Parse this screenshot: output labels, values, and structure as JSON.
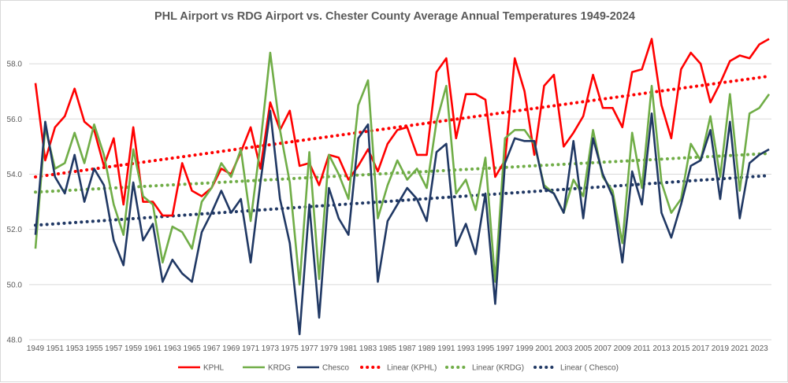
{
  "chart_data": {
    "type": "line",
    "title": "PHL Airport vs RDG Airport vs. Chester County Average Annual Temperatures 1949-2024",
    "xlabel": "",
    "ylabel": "",
    "xlim": [
      1949,
      2024
    ],
    "ylim": [
      48.0,
      59.0
    ],
    "yticks": [
      "48.0",
      "50.0",
      "52.0",
      "54.0",
      "56.0",
      "58.0"
    ],
    "ytick_values": [
      48,
      50,
      52,
      54,
      56,
      58
    ],
    "xticks": [
      1949,
      1951,
      1953,
      1955,
      1957,
      1959,
      1961,
      1963,
      1965,
      1967,
      1969,
      1971,
      1973,
      1975,
      1977,
      1979,
      1981,
      1983,
      1985,
      1987,
      1989,
      1991,
      1993,
      1995,
      1997,
      1999,
      2001,
      2003,
      2005,
      2007,
      2009,
      2011,
      2013,
      2015,
      2017,
      2019,
      2021,
      2023
    ],
    "grid": true,
    "legend_position": "bottom",
    "series": [
      {
        "name": "KPHL",
        "color": "#ff0000",
        "values": [
          57.3,
          54.5,
          55.7,
          56.1,
          57.1,
          55.9,
          55.6,
          54.3,
          55.3,
          52.9,
          55.7,
          53.0,
          53.0,
          52.5,
          52.5,
          54.4,
          53.4,
          53.2,
          53.5,
          54.2,
          54.0,
          54.8,
          55.7,
          54.2,
          56.6,
          55.6,
          56.3,
          54.3,
          54.4,
          53.6,
          54.7,
          54.6,
          53.8,
          54.3,
          54.9,
          54.1,
          55.1,
          55.6,
          55.7,
          54.7,
          54.7,
          57.7,
          58.2,
          55.3,
          56.9,
          56.9,
          56.7,
          53.9,
          54.5,
          58.2,
          57.0,
          54.7,
          57.2,
          57.6,
          55.0,
          55.5,
          56.1,
          57.6,
          56.4,
          56.4,
          55.7,
          57.7,
          57.8,
          58.9,
          56.5,
          55.3,
          57.8,
          58.4,
          58.0,
          56.6,
          57.3,
          58.1,
          58.3,
          58.2,
          58.7,
          58.9
        ]
      },
      {
        "name": "KRDG",
        "color": "#70ad47",
        "values": [
          51.3,
          55.7,
          54.2,
          54.4,
          55.5,
          54.4,
          55.8,
          54.7,
          52.9,
          51.8,
          54.9,
          53.2,
          52.9,
          50.8,
          52.1,
          51.9,
          51.3,
          53.0,
          53.5,
          54.4,
          53.9,
          54.9,
          52.3,
          55.1,
          58.4,
          55.6,
          53.7,
          50.0,
          54.8,
          50.2,
          54.7,
          54.0,
          53.1,
          56.5,
          57.4,
          52.4,
          53.6,
          54.5,
          53.8,
          54.2,
          53.5,
          55.9,
          57.2,
          53.3,
          53.8,
          52.7,
          54.6,
          50.1,
          55.3,
          55.6,
          55.6,
          55.1,
          53.6,
          53.3,
          52.6,
          53.8,
          53.2,
          55.6,
          53.9,
          53.4,
          51.5,
          55.5,
          53.5,
          57.2,
          53.7,
          52.6,
          53.1,
          55.1,
          54.5,
          56.1,
          53.9,
          56.9,
          53.4,
          56.2,
          56.4,
          56.9
        ]
      },
      {
        "name": "Chesco",
        "color": "#203864",
        "values": [
          51.8,
          55.9,
          53.9,
          53.3,
          54.7,
          53.0,
          54.2,
          53.6,
          51.6,
          50.7,
          53.7,
          51.6,
          52.2,
          50.1,
          50.9,
          50.4,
          50.1,
          51.9,
          52.6,
          53.4,
          52.6,
          53.1,
          50.8,
          53.7,
          56.3,
          53.1,
          51.5,
          48.2,
          52.9,
          48.8,
          53.5,
          52.4,
          51.8,
          55.3,
          55.8,
          50.1,
          52.3,
          52.9,
          53.5,
          53.1,
          52.3,
          54.8,
          55.1,
          51.4,
          52.2,
          51.1,
          53.3,
          49.3,
          54.4,
          55.3,
          55.2,
          55.2,
          53.5,
          53.3,
          52.6,
          55.2,
          52.4,
          55.3,
          54.0,
          53.2,
          50.8,
          54.1,
          52.9,
          56.2,
          52.6,
          51.7,
          52.9,
          54.3,
          54.5,
          55.6,
          53.1,
          55.9,
          52.4,
          54.4,
          54.7,
          54.9
        ]
      }
    ],
    "trendlines": [
      {
        "name": "Linear (KPHL)",
        "color": "#ff0000",
        "start": 53.9,
        "end": 57.55
      },
      {
        "name": "Linear (KRDG)",
        "color": "#70ad47",
        "start": 53.35,
        "end": 54.75
      },
      {
        "name": "Linear ( Chesco)",
        "color": "#203864",
        "start": 52.15,
        "end": 53.95
      }
    ]
  }
}
